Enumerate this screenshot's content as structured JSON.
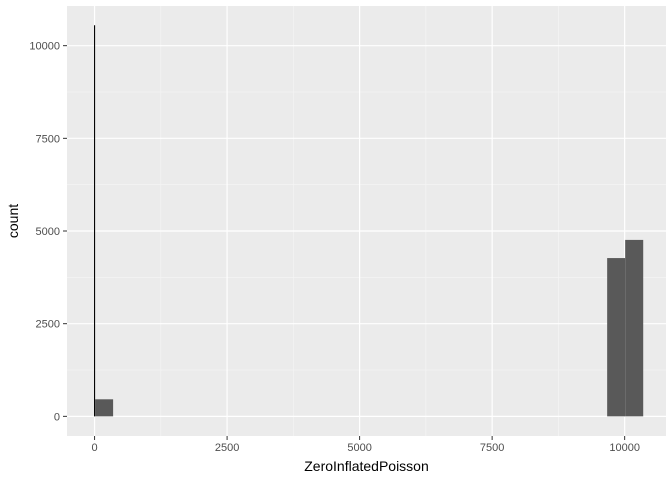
{
  "chart_data": {
    "type": "histogram",
    "title": "",
    "xlabel": "ZeroInflatedPoisson",
    "ylabel": "count",
    "xlim": [
      -520,
      10780
    ],
    "ylim": [
      -530,
      11070
    ],
    "x_ticks": [
      0,
      2500,
      5000,
      7500,
      10000
    ],
    "x_tick_labels": [
      "0",
      "2500",
      "5000",
      "7500",
      "10000"
    ],
    "y_ticks": [
      0,
      2500,
      5000,
      7500,
      10000
    ],
    "y_tick_labels": [
      "0",
      "2500",
      "5000",
      "7500",
      "10000"
    ],
    "grid": true,
    "bins": [
      {
        "x0": -10,
        "x1": 10,
        "count": 10550
      },
      {
        "x0": 10,
        "x1": 350,
        "count": 460
      },
      {
        "x0": 9670,
        "x1": 10010,
        "count": 4270
      },
      {
        "x0": 10010,
        "x1": 10350,
        "count": 4760
      }
    ],
    "colors": {
      "panel_background": "#ebebeb",
      "grid_major": "#ffffff",
      "grid_minor": "#f5f5f5",
      "bar_fill": "#595959",
      "spike": "#000000"
    }
  }
}
